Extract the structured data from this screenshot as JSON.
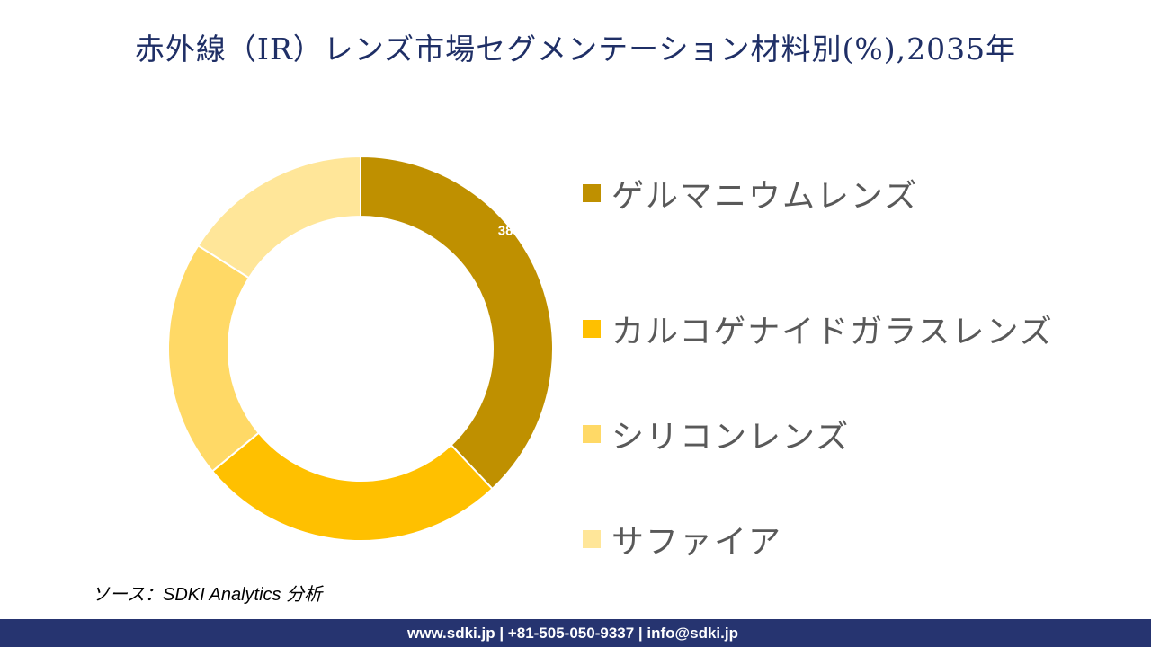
{
  "title": "赤外線（IR）レンズ市場セグメンテーション材料別(%),2035年",
  "chart_data": {
    "type": "donut",
    "title": "赤外線（IR）レンズ市場セグメンテーション材料別(%),2035年",
    "categories": [
      "ゲルマニウムレンズ",
      "カルコゲナイドガラスレンズ",
      "シリコンレンズ",
      "サファイア"
    ],
    "values": [
      38,
      26,
      20,
      16
    ],
    "data_labels": [
      "38%",
      "",
      "",
      ""
    ],
    "colors": [
      "#BF9000",
      "#FFC000",
      "#FFD966",
      "#FFE699"
    ],
    "legend_position": "right"
  },
  "source": "ソース：SDKI Analytics 分析",
  "footer": "www.sdki.jp | +81-505-050-9337 | info@sdki.jp"
}
